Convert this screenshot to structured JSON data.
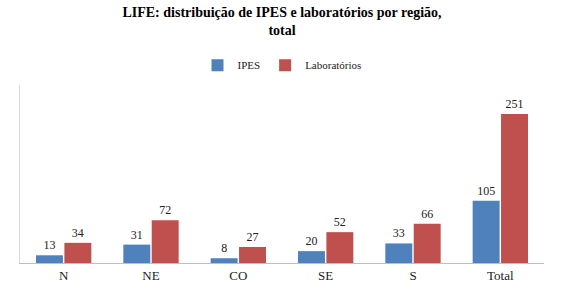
{
  "chart_data": {
    "type": "bar",
    "title": "LIFE: distribuição de IPES e laboratórios por região,\ntotal",
    "categories": [
      "N",
      "NE",
      "CO",
      "SE",
      "S",
      "Total"
    ],
    "series": [
      {
        "name": "IPES",
        "color": "#4f81bd",
        "values": [
          13,
          31,
          8,
          20,
          33,
          105
        ]
      },
      {
        "name": "Laboratórios",
        "color": "#c0504d",
        "values": [
          34,
          72,
          27,
          52,
          66,
          251
        ]
      }
    ],
    "ylim": [
      0,
      300
    ],
    "grid": false,
    "legend": "top",
    "data_labels": true,
    "tick_labels": "x"
  }
}
